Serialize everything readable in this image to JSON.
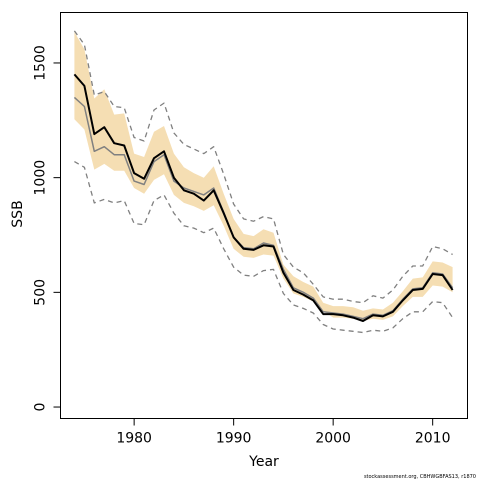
{
  "chart_data": {
    "type": "line",
    "xlabel": "Year",
    "ylabel": "SSB",
    "xlim": [
      1972.6,
      2013.5
    ],
    "ylim": [
      -50,
      1720
    ],
    "x_ticks": [
      1980,
      1990,
      2000,
      2010
    ],
    "y_ticks": [
      0,
      500,
      1000,
      1500
    ],
    "grid": false,
    "caption": "stockassessment.org, CBHWGBFAS13, r1870",
    "colors": {
      "band": "#f5deb3",
      "estimate": "#000000",
      "estimate_secondary": "#808080",
      "ci_dash": "#808080"
    },
    "x": [
      1974,
      1975,
      1976,
      1977,
      1978,
      1979,
      1980,
      1981,
      1982,
      1983,
      1984,
      1985,
      1986,
      1987,
      1988,
      1989,
      1990,
      1991,
      1992,
      1993,
      1994,
      1995,
      1996,
      1997,
      1998,
      1999,
      2000,
      2001,
      2002,
      2003,
      2004,
      2005,
      2006,
      2007,
      2008,
      2009,
      2010,
      2011,
      2012
    ],
    "series": [
      {
        "role": "band",
        "lower": [
          1255,
          1210,
          1035,
          1060,
          1030,
          1030,
          955,
          930,
          990,
          1015,
          925,
          890,
          875,
          855,
          880,
          790,
          690,
          655,
          650,
          665,
          660,
          560,
          495,
          480,
          460,
          420,
          390,
          390,
          385,
          375,
          385,
          380,
          395,
          440,
          480,
          480,
          530,
          525,
          500
        ],
        "upper": [
          1635,
          1560,
          1345,
          1385,
          1275,
          1280,
          1105,
          1090,
          1200,
          1225,
          1105,
          1045,
          1020,
          1000,
          1050,
          930,
          820,
          755,
          745,
          775,
          760,
          620,
          570,
          545,
          525,
          455,
          440,
          440,
          435,
          420,
          430,
          425,
          455,
          505,
          560,
          565,
          635,
          630,
          610
        ]
      },
      {
        "role": "estimate",
        "values": [
          1450,
          1400,
          1190,
          1220,
          1150,
          1140,
          1020,
          995,
          1085,
          1115,
          1000,
          945,
          930,
          900,
          945,
          845,
          740,
          690,
          685,
          705,
          700,
          585,
          510,
          490,
          465,
          405,
          405,
          400,
          390,
          375,
          400,
          395,
          415,
          465,
          510,
          515,
          580,
          575,
          510
        ]
      },
      {
        "role": "estimate_secondary",
        "values": [
          1350,
          1310,
          1115,
          1135,
          1100,
          1100,
          985,
          970,
          1070,
          1100,
          985,
          955,
          940,
          925,
          955,
          850,
          740,
          695,
          690,
          715,
          705,
          600,
          520,
          500,
          475,
          415,
          410,
          405,
          395,
          385,
          405,
          400,
          420,
          470,
          515,
          520,
          585,
          580,
          520
        ]
      },
      {
        "role": "ci_upper",
        "values": [
          1640,
          1580,
          1360,
          1375,
          1310,
          1305,
          1175,
          1160,
          1295,
          1325,
          1195,
          1145,
          1125,
          1105,
          1135,
          1015,
          885,
          820,
          810,
          830,
          820,
          665,
          610,
          585,
          535,
          480,
          470,
          470,
          460,
          455,
          485,
          475,
          510,
          570,
          615,
          615,
          700,
          690,
          665
        ]
      },
      {
        "role": "ci_lower",
        "values": [
          1070,
          1045,
          890,
          905,
          890,
          900,
          800,
          795,
          900,
          925,
          845,
          790,
          780,
          760,
          780,
          690,
          610,
          575,
          570,
          595,
          600,
          495,
          445,
          430,
          410,
          360,
          340,
          335,
          330,
          325,
          335,
          330,
          345,
          385,
          415,
          415,
          460,
          455,
          390
        ]
      }
    ]
  }
}
